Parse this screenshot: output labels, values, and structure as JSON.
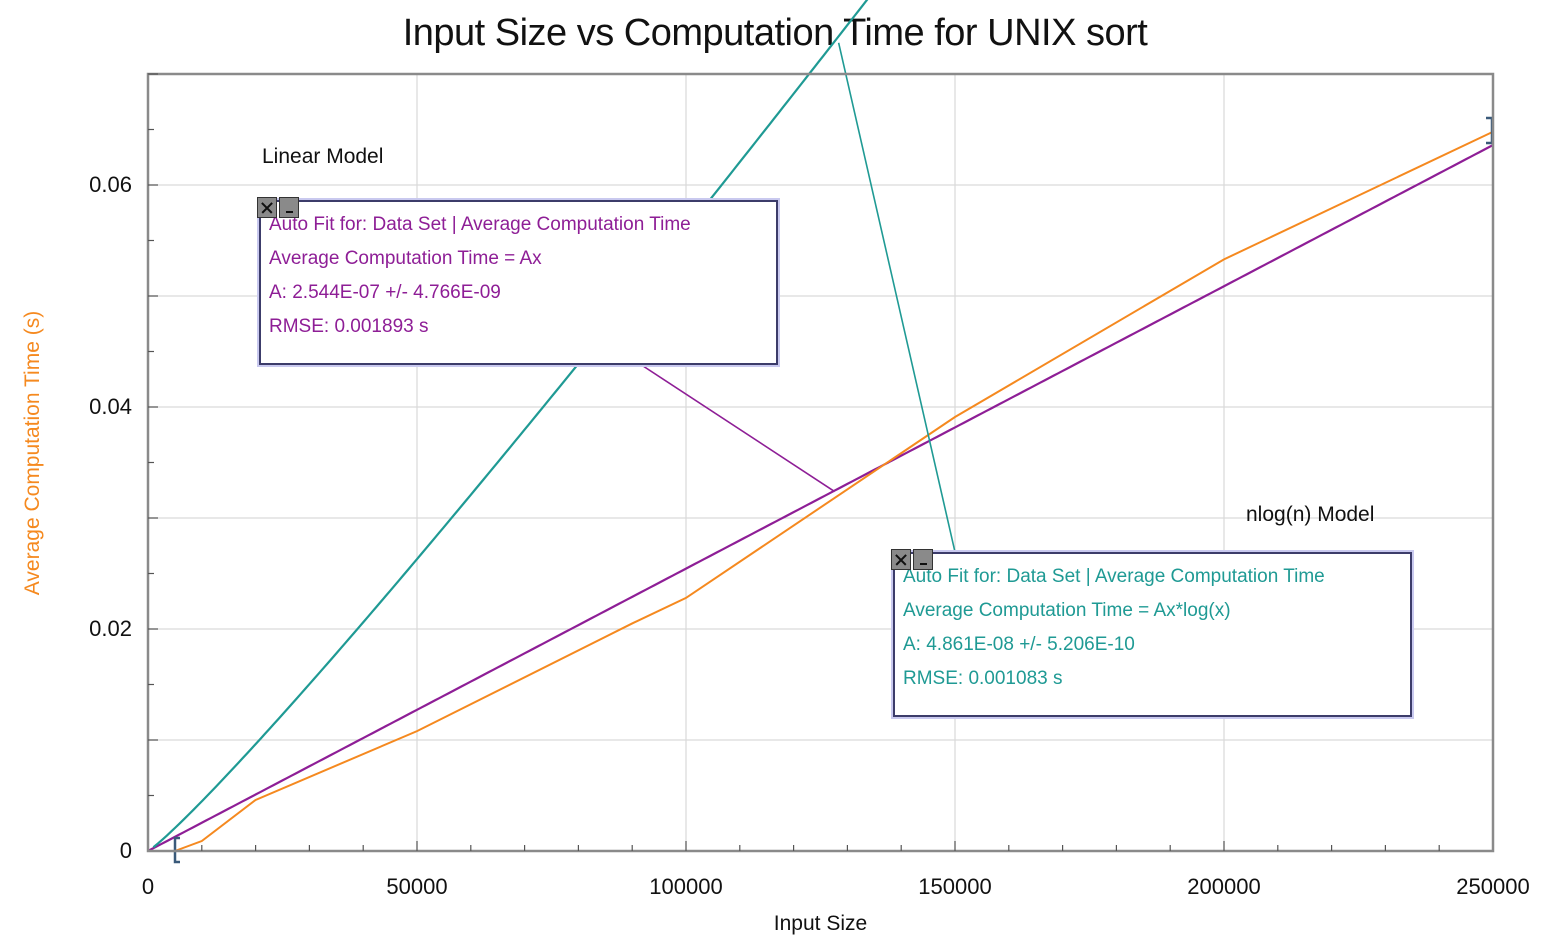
{
  "chart_data": {
    "type": "line",
    "title": "Input Size vs Computation Time for UNIX sort",
    "xlabel": "Input Size",
    "ylabel": "Average Computation Time (s)",
    "xlim": [
      0,
      250000
    ],
    "ylim": [
      0,
      0.07
    ],
    "x_ticks": [
      0,
      50000,
      100000,
      150000,
      200000,
      250000
    ],
    "x_tick_labels": [
      "0",
      "50000",
      "100000",
      "150000",
      "200000",
      "250000"
    ],
    "y_ticks": [
      0,
      0.02,
      0.04,
      0.06
    ],
    "y_tick_labels": [
      "0",
      "0.02",
      "0.04",
      "0.06"
    ],
    "grid": true,
    "series": [
      {
        "name": "Average Computation Time",
        "color": "#f5891f",
        "x": [
          5000,
          10000,
          20000,
          50000,
          90000,
          100000,
          150000,
          200000,
          250000
        ],
        "y": [
          0.0,
          0.0009,
          0.0046,
          0.0108,
          0.0205,
          0.0228,
          0.0391,
          0.0533,
          0.0648
        ]
      }
    ],
    "fits": [
      {
        "label": "Linear Model",
        "model": "linear",
        "A": 2.544e-07,
        "color": "#8e1e96",
        "x_range": [
          0,
          250000
        ],
        "lines": [
          "Auto Fit for: Data Set | Average Computation Time",
          "Average Computation Time = Ax",
          "A: 2.544E-07 +/- 4.766E-09",
          "RMSE: 0.001893 s"
        ]
      },
      {
        "label": "nlog(n) Model",
        "model": "nlogn",
        "A": 4.861e-08,
        "color": "#1f9a94",
        "x_range": [
          1000,
          250000
        ],
        "lines": [
          "Auto Fit for: Data Set | Average Computation Time",
          "Average Computation Time = Ax*log(x)",
          "A: 4.861E-08 +/- 5.206E-10",
          "RMSE: 0.001083 s"
        ]
      }
    ],
    "colors": {
      "ylabel": "#f5891f",
      "grid": "#d9d9d9",
      "frame": "#8a8a8a"
    }
  }
}
